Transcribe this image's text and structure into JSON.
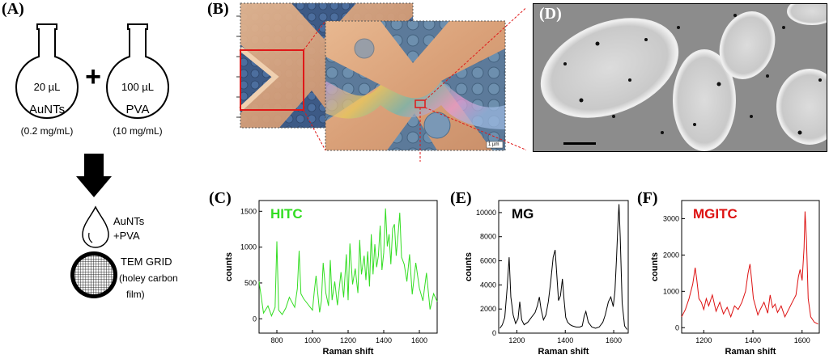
{
  "panels": {
    "A": "(A)",
    "B": "(B)",
    "C": "(C)",
    "D": "(D)",
    "E": "(E)",
    "F": "(F)"
  },
  "prep": {
    "flask1": {
      "volume": "20 µL",
      "name": "AuNTs",
      "conc": "(0.2 mg/mL)"
    },
    "plus": "+",
    "flask2": {
      "volume": "100 µL",
      "name": "PVA",
      "conc": "(10 mg/mL)"
    },
    "drop_label_1": "AuNTs",
    "drop_label_2": "+PVA",
    "grid_label_1": "TEM GRID",
    "grid_label_2": "(holey carbon",
    "grid_label_3": "film)"
  },
  "micrograph": {
    "scale_label": "1 µm"
  },
  "colors": {
    "hitc": "#33dd22",
    "mg": "#000000",
    "mgitc": "#dd1111",
    "zoom_box": "#e01818"
  },
  "chart_data": [
    {
      "type": "line",
      "panel": "(C)",
      "series_label": "HITC",
      "xlabel": "Raman shift",
      "ylabel": "counts",
      "xlim": [
        700,
        1700
      ],
      "ylim": [
        -200,
        1650
      ],
      "xticks": [
        800,
        1000,
        1200,
        1400,
        1600
      ],
      "yticks": [
        0,
        500,
        1000,
        1500
      ],
      "color": "#33dd22",
      "x": [
        700,
        725,
        750,
        770,
        790,
        800,
        810,
        830,
        850,
        870,
        900,
        915,
        925,
        935,
        950,
        975,
        1000,
        1010,
        1020,
        1040,
        1050,
        1060,
        1075,
        1090,
        1100,
        1110,
        1125,
        1140,
        1160,
        1175,
        1190,
        1200,
        1210,
        1225,
        1240,
        1255,
        1265,
        1275,
        1290,
        1300,
        1310,
        1320,
        1330,
        1340,
        1350,
        1360,
        1370,
        1380,
        1390,
        1400,
        1410,
        1420,
        1430,
        1440,
        1450,
        1460,
        1470,
        1480,
        1490,
        1500,
        1515,
        1530,
        1545,
        1560,
        1580,
        1600,
        1620,
        1640,
        1660,
        1680,
        1700
      ],
      "y": [
        520,
        80,
        180,
        40,
        160,
        1080,
        120,
        60,
        150,
        300,
        160,
        420,
        950,
        350,
        280,
        200,
        120,
        380,
        600,
        90,
        250,
        780,
        360,
        180,
        820,
        260,
        520,
        190,
        650,
        300,
        900,
        260,
        1050,
        480,
        700,
        360,
        1100,
        620,
        880,
        540,
        940,
        450,
        1180,
        620,
        1040,
        720,
        880,
        1300,
        680,
        920,
        1540,
        1010,
        1180,
        760,
        1260,
        1320,
        880,
        1160,
        1480,
        860,
        760,
        520,
        900,
        340,
        780,
        430,
        250,
        640,
        130,
        350,
        240
      ]
    },
    {
      "type": "line",
      "panel": "(E)",
      "series_label": "MG",
      "xlabel": "Raman shift",
      "ylabel": "counts",
      "xlim": [
        1125,
        1660
      ],
      "ylim": [
        0,
        11000
      ],
      "xticks": [
        1200,
        1400,
        1600
      ],
      "yticks": [
        0,
        2000,
        4000,
        6000,
        8000,
        10000
      ],
      "color": "#000000",
      "x": [
        1130,
        1140,
        1150,
        1160,
        1168,
        1175,
        1185,
        1195,
        1205,
        1212,
        1220,
        1230,
        1245,
        1260,
        1275,
        1285,
        1293,
        1300,
        1310,
        1320,
        1330,
        1340,
        1350,
        1358,
        1365,
        1372,
        1380,
        1388,
        1395,
        1402,
        1410,
        1420,
        1430,
        1445,
        1460,
        1470,
        1478,
        1485,
        1495,
        1510,
        1525,
        1540,
        1555,
        1565,
        1578,
        1588,
        1598,
        1605,
        1612,
        1618,
        1622,
        1627,
        1635,
        1645,
        1655
      ],
      "y": [
        400,
        700,
        1300,
        3800,
        6300,
        3000,
        1500,
        800,
        1200,
        2600,
        1100,
        700,
        900,
        1300,
        1700,
        2300,
        3000,
        2000,
        1100,
        1500,
        2600,
        4300,
        6300,
        6900,
        4800,
        2700,
        3100,
        4500,
        2800,
        1300,
        900,
        700,
        600,
        500,
        500,
        600,
        1400,
        1800,
        900,
        500,
        400,
        500,
        900,
        1500,
        2600,
        3000,
        2200,
        3500,
        6300,
        9200,
        10700,
        8000,
        2500,
        600,
        300
      ]
    },
    {
      "type": "line",
      "panel": "(F)",
      "series_label": "MGITC",
      "xlabel": "Raman shift",
      "ylabel": "counts",
      "xlim": [
        1110,
        1670
      ],
      "ylim": [
        -150,
        3500
      ],
      "xticks": [
        1200,
        1400,
        1600
      ],
      "yticks": [
        0,
        1000,
        2000,
        3000
      ],
      "color": "#dd1111",
      "x": [
        1110,
        1125,
        1140,
        1155,
        1165,
        1172,
        1180,
        1190,
        1200,
        1210,
        1220,
        1235,
        1250,
        1265,
        1280,
        1295,
        1310,
        1325,
        1340,
        1355,
        1370,
        1380,
        1388,
        1395,
        1402,
        1410,
        1420,
        1430,
        1445,
        1460,
        1470,
        1480,
        1490,
        1500,
        1515,
        1530,
        1545,
        1560,
        1575,
        1585,
        1592,
        1600,
        1608,
        1612,
        1618,
        1625,
        1635,
        1650,
        1665
      ],
      "y": [
        300,
        500,
        800,
        1200,
        1650,
        1300,
        800,
        700,
        500,
        800,
        600,
        900,
        450,
        700,
        380,
        560,
        300,
        600,
        500,
        700,
        1000,
        1500,
        1750,
        1300,
        800,
        600,
        350,
        500,
        700,
        400,
        900,
        550,
        650,
        420,
        600,
        300,
        500,
        700,
        900,
        1400,
        1600,
        1300,
        2200,
        3200,
        2400,
        800,
        300,
        150,
        100
      ]
    }
  ]
}
